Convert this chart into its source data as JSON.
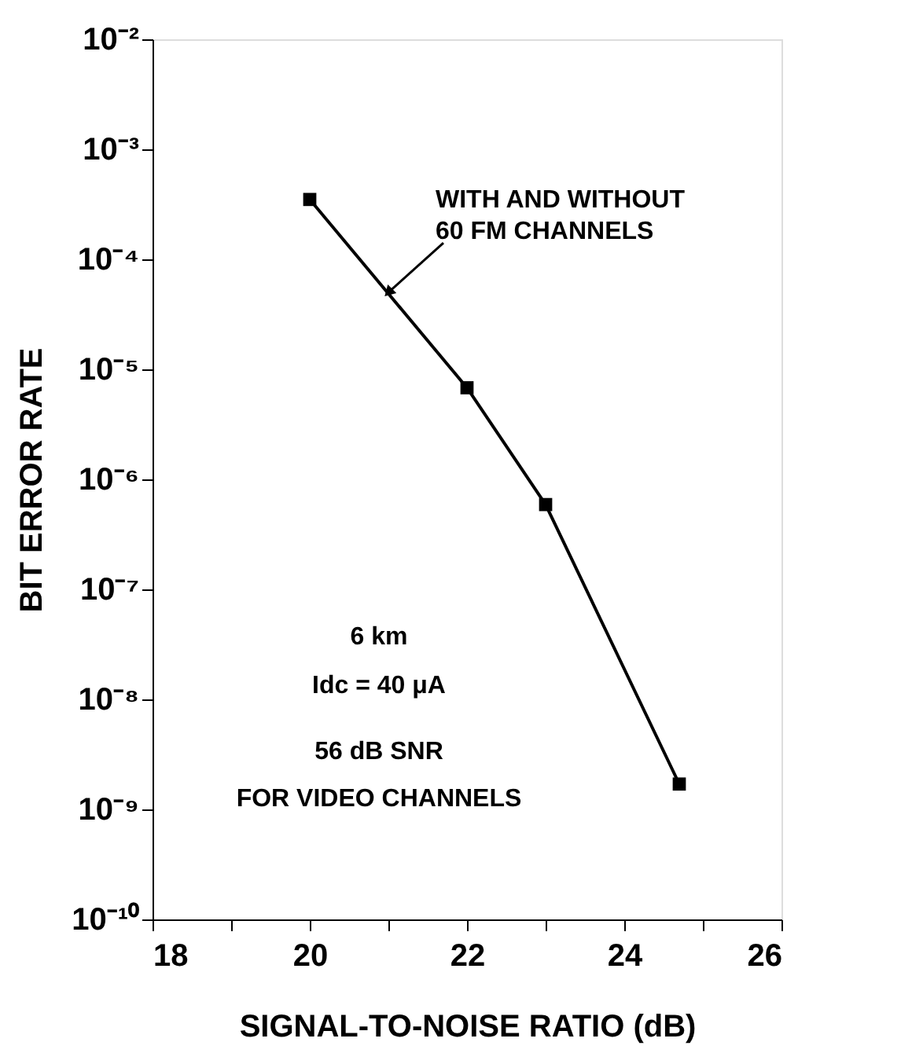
{
  "chart_data": {
    "type": "line",
    "xlabel": "SIGNAL-TO-NOISE RATIO (dB)",
    "ylabel": "BIT ERROR RATE",
    "x": [
      20,
      22,
      23,
      24.7
    ],
    "series": [
      {
        "color": "#000000",
        "values": [
          0.00035,
          6.8e-06,
          5.9e-07,
          1.7e-09
        ]
      }
    ],
    "marker": "square",
    "line_style": "solid",
    "log": "y",
    "grid": false,
    "xlim": [
      18,
      26
    ],
    "ylim": [
      1e-10,
      0.01
    ],
    "xticks": [
      18,
      {
        "value": 19,
        "label": null
      },
      20,
      {
        "value": 21,
        "label": null
      },
      22,
      {
        "value": 23,
        "label": null
      },
      24,
      {
        "value": 25,
        "label": null
      },
      26
    ],
    "yticks": [
      {
        "value": 1e-10,
        "label": "10⁻¹⁰"
      },
      {
        "value": 1e-09,
        "label": "10⁻⁹"
      },
      {
        "value": 1e-08,
        "label": "10⁻⁸"
      },
      {
        "value": 1e-07,
        "label": "10⁻⁷"
      },
      {
        "value": 1e-06,
        "label": "10⁻⁶"
      },
      {
        "value": 1e-05,
        "label": "10⁻⁵"
      },
      {
        "value": 0.0001,
        "label": "10⁻⁴"
      },
      {
        "value": 0.001,
        "label": "10⁻³"
      },
      {
        "value": 0.01,
        "label": "10⁻²"
      }
    ],
    "annotations": [
      {
        "text": "WITH AND WITHOUT 60 FM CHANNELS",
        "x": 21,
        "y": 5e-05
      },
      "6 km",
      "Idc = 40 μA",
      "56 dB SNR",
      "FOR VIDEO CHANNELS"
    ]
  }
}
